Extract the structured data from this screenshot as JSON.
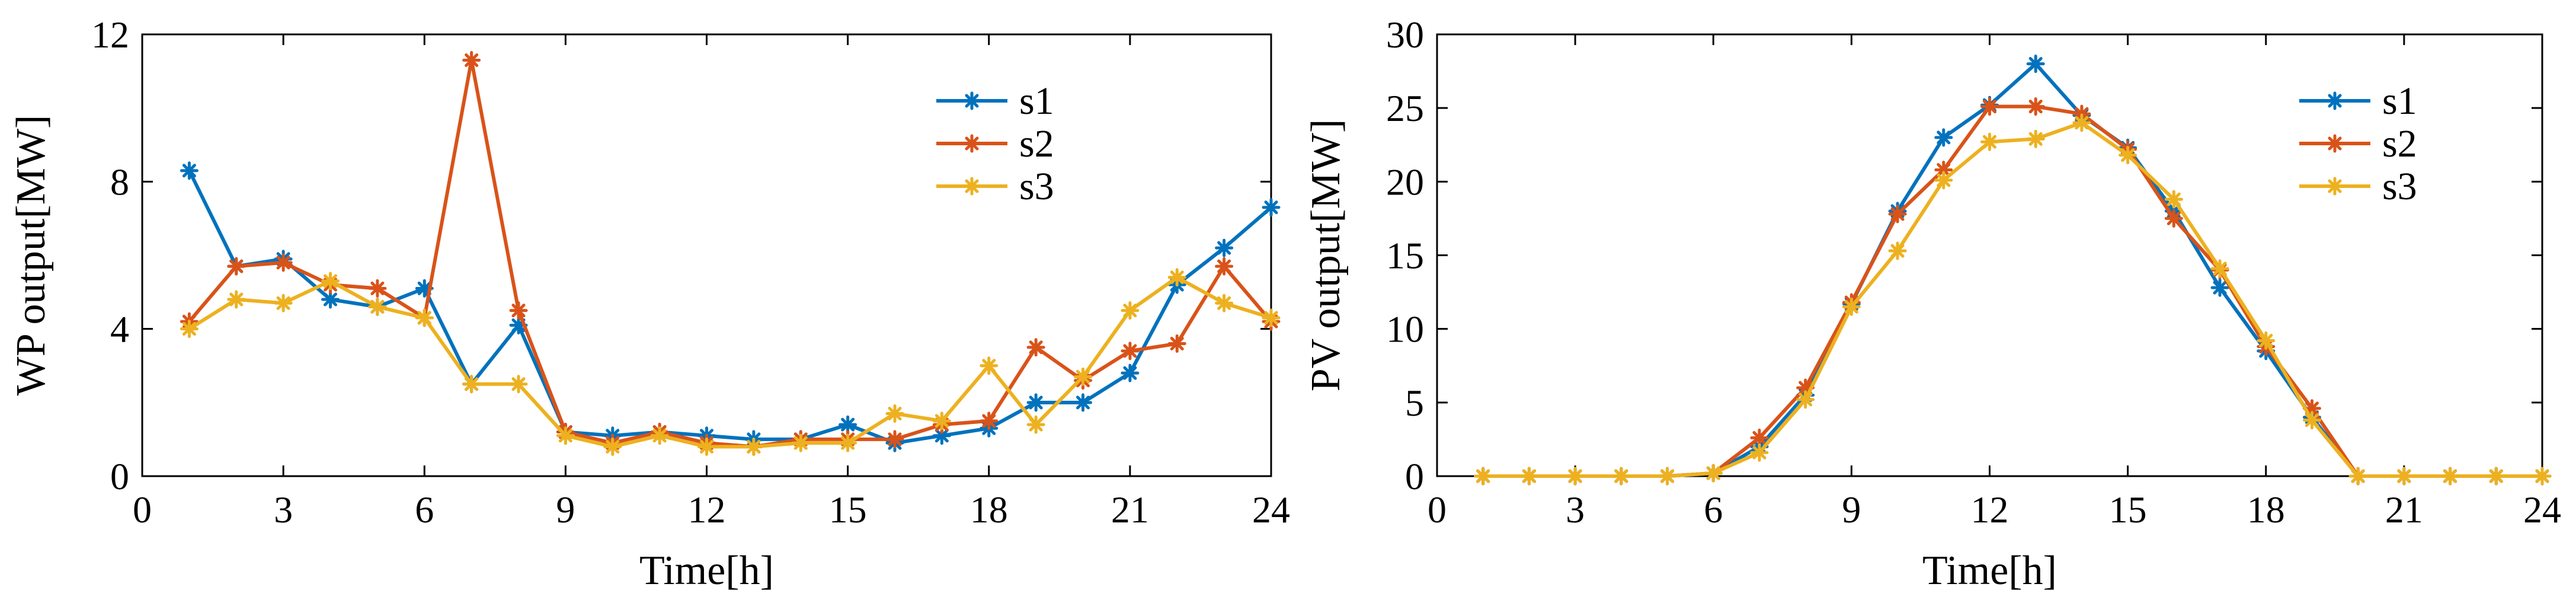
{
  "chart_data": [
    {
      "type": "line",
      "title": "",
      "xlabel": "Time[h]",
      "ylabel": "WP output[MW]",
      "xlim": [
        0,
        24
      ],
      "ylim": [
        0,
        12
      ],
      "xticks": [
        0,
        3,
        6,
        9,
        12,
        15,
        18,
        21,
        24
      ],
      "yticks": [
        0,
        4,
        8,
        12
      ],
      "legend_position": "top-right",
      "x": [
        1,
        2,
        3,
        4,
        5,
        6,
        7,
        8,
        9,
        10,
        11,
        12,
        13,
        14,
        15,
        16,
        17,
        18,
        19,
        20,
        21,
        22,
        23,
        24
      ],
      "series": [
        {
          "name": "s1",
          "color": "#0072BD",
          "values": [
            8.3,
            5.7,
            5.9,
            4.8,
            4.6,
            5.1,
            2.5,
            4.1,
            1.2,
            1.1,
            1.2,
            1.1,
            1.0,
            1.0,
            1.4,
            0.9,
            1.1,
            1.3,
            2.0,
            2.0,
            2.8,
            5.2,
            6.2,
            7.3
          ]
        },
        {
          "name": "s2",
          "color": "#D95319",
          "values": [
            4.2,
            5.7,
            5.8,
            5.2,
            5.1,
            4.3,
            11.3,
            4.5,
            1.2,
            0.9,
            1.2,
            0.9,
            0.8,
            1.0,
            1.0,
            1.0,
            1.4,
            1.5,
            3.5,
            2.6,
            3.4,
            3.6,
            5.7,
            4.2
          ]
        },
        {
          "name": "s3",
          "color": "#EDB120",
          "values": [
            4.0,
            4.8,
            4.7,
            5.3,
            4.6,
            4.3,
            2.5,
            2.5,
            1.1,
            0.8,
            1.1,
            0.8,
            0.8,
            0.9,
            0.9,
            1.7,
            1.5,
            3.0,
            1.4,
            2.7,
            4.5,
            5.4,
            4.7,
            4.3
          ]
        }
      ]
    },
    {
      "type": "line",
      "title": "",
      "xlabel": "Time[h]",
      "ylabel": "PV output[MW]",
      "xlim": [
        0,
        24
      ],
      "ylim": [
        0,
        30
      ],
      "xticks": [
        0,
        3,
        6,
        9,
        12,
        15,
        18,
        21,
        24
      ],
      "yticks": [
        0,
        5,
        10,
        15,
        20,
        25,
        30
      ],
      "legend_position": "top-right",
      "x": [
        1,
        2,
        3,
        4,
        5,
        6,
        7,
        8,
        9,
        10,
        11,
        12,
        13,
        14,
        15,
        16,
        17,
        18,
        19,
        20,
        21,
        22,
        23,
        24
      ],
      "series": [
        {
          "name": "s1",
          "color": "#0072BD",
          "values": [
            0,
            0,
            0,
            0,
            0,
            0.2,
            2.0,
            5.5,
            11.7,
            18.0,
            23.0,
            25.2,
            28.0,
            24.5,
            22.3,
            18.0,
            12.8,
            8.5,
            4.0,
            0,
            0,
            0,
            0,
            0
          ]
        },
        {
          "name": "s2",
          "color": "#D95319",
          "values": [
            0,
            0,
            0,
            0,
            0,
            0.2,
            2.6,
            6.0,
            11.8,
            17.8,
            20.8,
            25.1,
            25.1,
            24.6,
            22.2,
            17.5,
            14.0,
            8.8,
            4.6,
            0,
            0,
            0,
            0,
            0
          ]
        },
        {
          "name": "s3",
          "color": "#EDB120",
          "values": [
            0,
            0,
            0,
            0,
            0,
            0.2,
            1.6,
            5.2,
            11.5,
            15.3,
            20.1,
            22.7,
            22.9,
            24.0,
            21.8,
            18.8,
            14.1,
            9.2,
            3.8,
            0,
            0,
            0,
            0,
            0
          ]
        }
      ]
    }
  ]
}
